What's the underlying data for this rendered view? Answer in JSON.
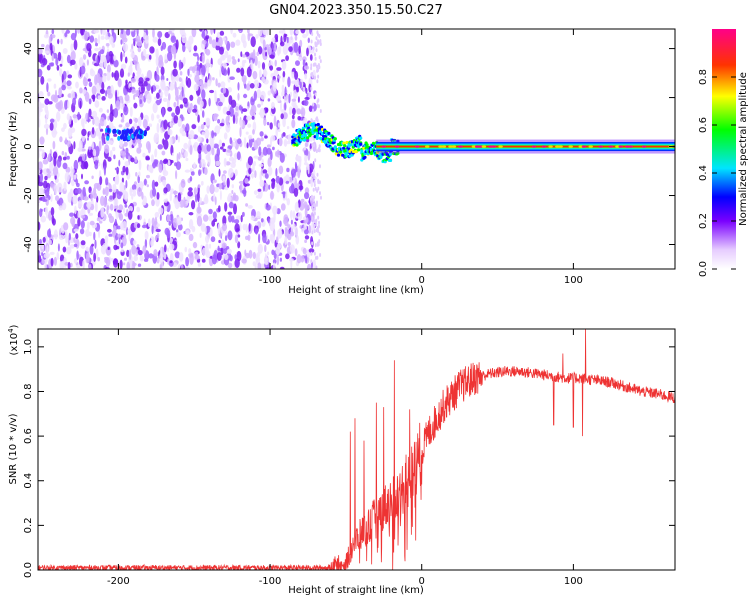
{
  "title": "GN04.2023.350.15.50.C27",
  "chart_data": [
    {
      "type": "heatmap",
      "xlabel": "Height of straight line (km)",
      "ylabel": "Frequency (Hz)",
      "xlim": [
        -253,
        167
      ],
      "ylim": [
        -50,
        48
      ],
      "xticks": [
        -200,
        -100,
        0,
        100
      ],
      "xtick_labels": [
        "-200",
        "-100",
        "0",
        "100"
      ],
      "yticks": [
        -40,
        -20,
        0,
        20,
        40
      ],
      "ytick_labels": [
        "-40",
        "-20",
        "0",
        "20",
        "40"
      ],
      "noise_region_x": [
        -253,
        -73
      ],
      "signal_line_freq": 0,
      "noise_blob_center": [
        -195,
        5
      ],
      "colorbar": {
        "label": "Normalized spectral amplitude",
        "range": [
          0,
          1
        ],
        "ticks": [
          0,
          0.2,
          0.4,
          0.6,
          0.8
        ],
        "tick_labels": [
          "0.0",
          "0.2",
          "0.4",
          "0.6",
          "0.8"
        ]
      }
    },
    {
      "type": "line",
      "xlabel": "Height of straight line (km)",
      "ylabel": "SNR (10 * v/v)",
      "yscale_note": "(x10",
      "yscale_exp": "4",
      "xlim": [
        -253,
        167
      ],
      "ylim": [
        0,
        1.08
      ],
      "xticks": [
        -200,
        -100,
        0,
        100
      ],
      "xtick_labels": [
        "-200",
        "-100",
        "0",
        "100"
      ],
      "yticks": [
        0,
        0.2,
        0.4,
        0.6,
        0.8,
        1.0
      ],
      "ytick_labels": [
        "0.0",
        "0.2",
        "0.4",
        "0.6",
        "0.8",
        "1.0"
      ],
      "color": "#ee3333",
      "envelope": {
        "x": [
          -253,
          -100,
          -62,
          -50,
          -45,
          -35,
          -25,
          -15,
          -5,
          5,
          15,
          25,
          35,
          45,
          55,
          65,
          75,
          85,
          95,
          105,
          115,
          125,
          135,
          145,
          155,
          167
        ],
        "y": [
          0.01,
          0.01,
          0.01,
          0.03,
          0.12,
          0.2,
          0.28,
          0.34,
          0.45,
          0.62,
          0.74,
          0.82,
          0.86,
          0.88,
          0.89,
          0.89,
          0.88,
          0.87,
          0.86,
          0.86,
          0.85,
          0.84,
          0.82,
          0.8,
          0.79,
          0.77
        ]
      },
      "spikes": [
        {
          "x": -47,
          "y": 0.62
        },
        {
          "x": -44,
          "y": 0.68
        },
        {
          "x": -38,
          "y": 0.58
        },
        {
          "x": -30,
          "y": 0.75
        },
        {
          "x": -25,
          "y": 0.73
        },
        {
          "x": -18,
          "y": 0.94
        },
        {
          "x": -8,
          "y": 0.72
        },
        {
          "x": 87,
          "y": 0.65
        },
        {
          "x": 93,
          "y": 0.97
        },
        {
          "x": 100,
          "y": 0.64
        },
        {
          "x": 106,
          "y": 0.6
        },
        {
          "x": 108,
          "y": 1.08
        }
      ]
    }
  ]
}
